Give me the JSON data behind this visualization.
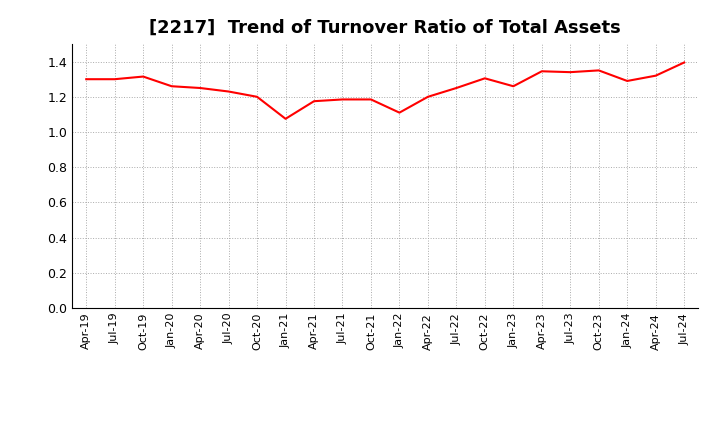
{
  "title": "[2217]  Trend of Turnover Ratio of Total Assets",
  "title_fontsize": 13,
  "line_color": "#FF0000",
  "line_width": 1.5,
  "background_color": "#FFFFFF",
  "grid_color": "#AAAAAA",
  "ylim": [
    0.0,
    1.5
  ],
  "yticks": [
    0.0,
    0.2,
    0.4,
    0.6,
    0.8,
    1.0,
    1.2,
    1.4
  ],
  "labels": [
    "Apr-19",
    "Jul-19",
    "Oct-19",
    "Jan-20",
    "Apr-20",
    "Jul-20",
    "Oct-20",
    "Jan-21",
    "Apr-21",
    "Jul-21",
    "Oct-21",
    "Jan-22",
    "Apr-22",
    "Jul-22",
    "Oct-22",
    "Jan-23",
    "Apr-23",
    "Jul-23",
    "Oct-23",
    "Jan-24",
    "Apr-24",
    "Jul-24"
  ],
  "values": [
    1.3,
    1.3,
    1.315,
    1.26,
    1.25,
    1.23,
    1.2,
    1.075,
    1.175,
    1.185,
    1.185,
    1.11,
    1.2,
    1.25,
    1.305,
    1.26,
    1.345,
    1.34,
    1.35,
    1.29,
    1.32,
    1.395
  ]
}
